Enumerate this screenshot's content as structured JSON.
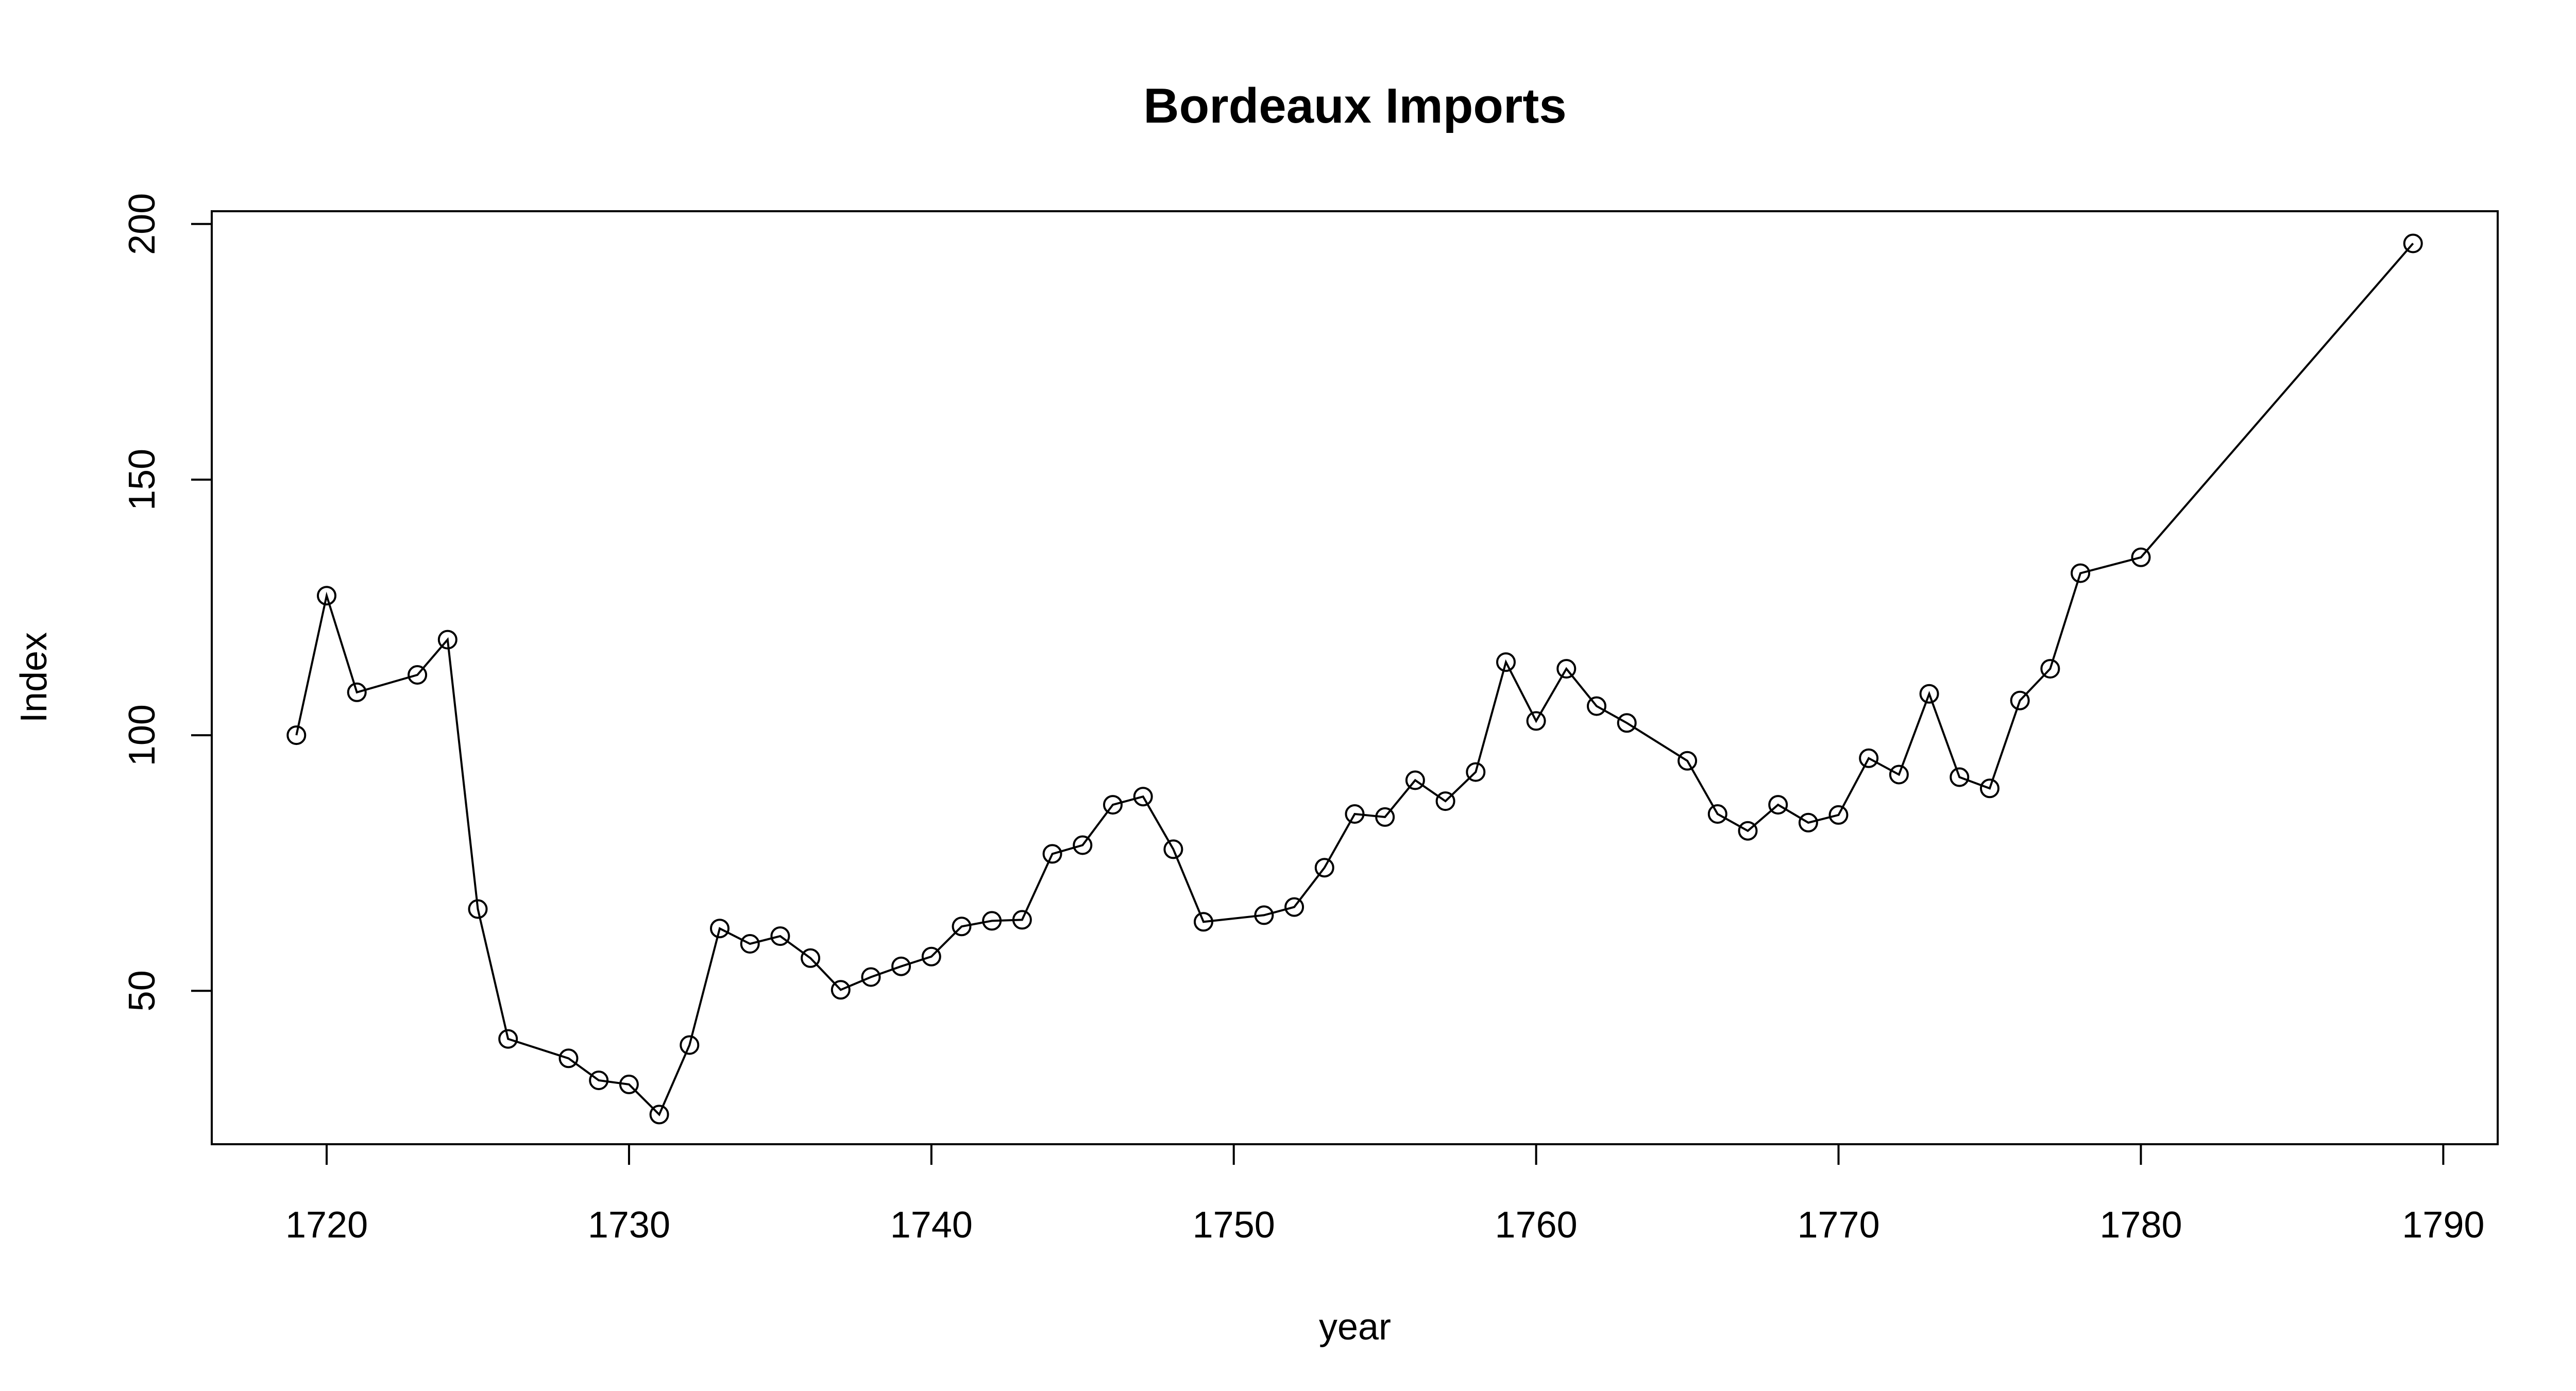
{
  "chart_data": {
    "type": "line",
    "title": "Bordeaux Imports",
    "xlabel": "year",
    "ylabel": "Index",
    "xlim": [
      1716.2,
      1791.8
    ],
    "ylim": [
      20,
      202.5
    ],
    "x_ticks": [
      1720,
      1730,
      1740,
      1750,
      1760,
      1770,
      1780,
      1790
    ],
    "y_ticks": [
      50,
      100,
      150,
      200
    ],
    "grid": false,
    "legend": "none",
    "markers": "open-circle",
    "series": [
      {
        "x": [
          1719,
          1720,
          1721,
          1723,
          1724,
          1725,
          1726,
          1728,
          1729,
          1730,
          1731,
          1732,
          1733,
          1734,
          1735,
          1736,
          1737,
          1738,
          1739,
          1740,
          1741,
          1742,
          1743,
          1744,
          1745,
          1746,
          1747,
          1748,
          1749,
          1751,
          1752,
          1753,
          1754,
          1755,
          1756,
          1757,
          1758,
          1759,
          1760,
          1761,
          1762,
          1763,
          1765,
          1766,
          1767,
          1768,
          1769,
          1770,
          1771,
          1772,
          1773,
          1774,
          1775,
          1776,
          1777,
          1778,
          1780,
          1789
        ],
        "y": [
          100,
          127.3,
          108.4,
          111.8,
          118.7,
          66,
          40.6,
          36.8,
          32.5,
          31.7,
          25.8,
          39.4,
          62.2,
          59.2,
          60.7,
          56.4,
          50.2,
          52.7,
          54.8,
          56.7,
          62.6,
          63.7,
          63.9,
          76.8,
          78.5,
          86.4,
          88,
          77.7,
          63.5,
          64.8,
          66.4,
          74.1,
          84.6,
          84,
          91.2,
          87.1,
          92.8,
          114.3,
          102.8,
          113,
          105.7,
          102.4,
          95,
          84.6,
          81.3,
          86.4,
          82.9,
          84.4,
          95.5,
          92.3,
          108.1,
          91.8,
          89.6,
          106.8,
          113,
          131.7,
          134.8,
          196.2
        ]
      }
    ]
  }
}
